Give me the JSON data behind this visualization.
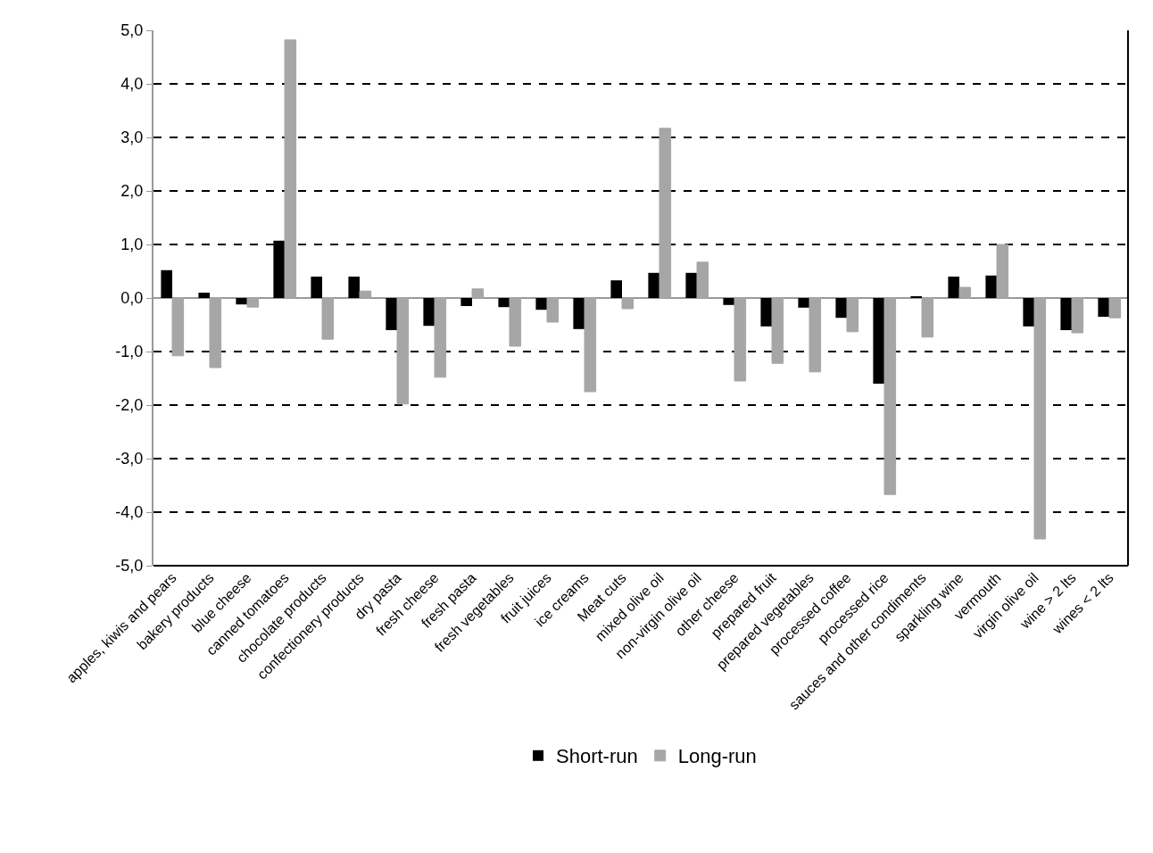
{
  "chart_data": {
    "type": "bar",
    "categories": [
      "apples, kiwis and pears",
      "bakery products",
      "blue cheese",
      "canned tomatoes",
      "chocolate products",
      "confectionery products",
      "dry pasta",
      "fresh cheese",
      "fresh pasta",
      "fresh vegetables",
      "fruit juices",
      "ice creams",
      "Meat cuts",
      "mixed olive oil",
      "non-virgin olive oil",
      "other cheese",
      "prepared fruit",
      "prepared vegetables",
      "processed coffee",
      "processed rice",
      "sauces and other condiments",
      "sparkling wine",
      "vermouth",
      "virgin olive oil",
      "wine > 2 lts",
      "wines < 2 lts"
    ],
    "series": [
      {
        "name": "Short-run",
        "color": "#000000",
        "values": [
          0.52,
          0.1,
          -0.12,
          1.07,
          0.4,
          0.4,
          -0.6,
          -0.52,
          -0.15,
          -0.17,
          -0.22,
          -0.58,
          0.33,
          0.47,
          0.47,
          -0.13,
          -0.53,
          -0.18,
          -0.37,
          -1.6,
          0.02,
          0.4,
          0.42,
          -0.53,
          -0.6,
          -0.35
        ]
      },
      {
        "name": "Long-run",
        "color": "#a6a6a6",
        "values": [
          -1.08,
          -1.3,
          -0.17,
          4.82,
          -0.77,
          0.13,
          -1.98,
          -1.48,
          0.17,
          -0.9,
          -0.45,
          -1.75,
          -0.2,
          3.17,
          0.67,
          -1.55,
          -1.22,
          -1.38,
          -0.63,
          -3.67,
          -0.73,
          0.2,
          1.0,
          -4.5,
          -0.65,
          -0.37
        ]
      }
    ],
    "ylim": [
      -5,
      5
    ],
    "yticks": [
      {
        "value": -5,
        "label": "-5,0"
      },
      {
        "value": -4,
        "label": "-4,0"
      },
      {
        "value": -3,
        "label": "-3,0"
      },
      {
        "value": -2,
        "label": "-2,0"
      },
      {
        "value": -1,
        "label": "-1,0"
      },
      {
        "value": 0,
        "label": "0,0"
      },
      {
        "value": 1,
        "label": "1,0"
      },
      {
        "value": 2,
        "label": "2,0"
      },
      {
        "value": 3,
        "label": "3,0"
      },
      {
        "value": 4,
        "label": "4,0"
      },
      {
        "value": 5,
        "label": "5,0"
      }
    ],
    "grid": "y",
    "legend": "bottom"
  }
}
